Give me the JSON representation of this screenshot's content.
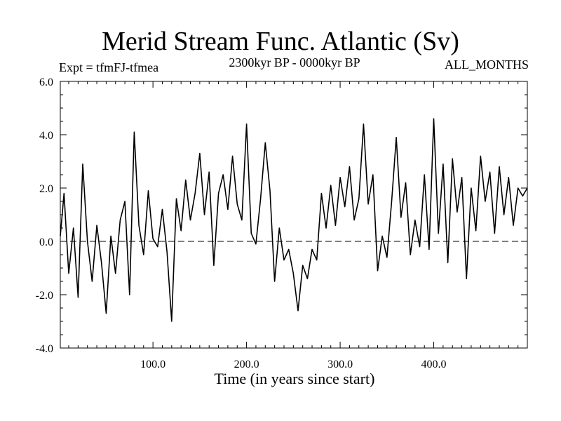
{
  "header": {
    "title": "Merid Stream Func. Atlantic (Sv)",
    "expt": "Expt = tfmFJ-tfmea",
    "period": "2300kyr BP - 0000kyr BP",
    "months": "ALL_MONTHS"
  },
  "colors": {
    "line": "#000000",
    "background": "#ffffff",
    "axis": "#000000"
  },
  "chart_data": {
    "type": "line",
    "title": "Merid Stream Func. Atlantic (Sv)",
    "xlabel": "Time (in years since start)",
    "ylabel": "",
    "xlim": [
      1,
      500
    ],
    "ylim": [
      -4.0,
      6.0
    ],
    "x_ticks": [
      100,
      200,
      300,
      400
    ],
    "x_tick_labels": [
      "100.0",
      "200.0",
      "300.0",
      "400.0"
    ],
    "y_ticks": [
      -4,
      -2,
      0,
      2,
      4,
      6
    ],
    "y_tick_labels": [
      "-4.0",
      "-2.0",
      "0.0",
      "2.0",
      "4.0",
      "6.0"
    ],
    "reference_line": {
      "y": 0.0,
      "style": "dashed"
    },
    "grid": false,
    "series": [
      {
        "name": "tfmFJ-tfmea",
        "x": [
          1,
          5,
          10,
          15,
          20,
          25,
          30,
          35,
          40,
          45,
          50,
          55,
          60,
          65,
          70,
          75,
          80,
          85,
          90,
          95,
          100,
          105,
          110,
          115,
          120,
          125,
          130,
          135,
          140,
          145,
          150,
          155,
          160,
          165,
          170,
          175,
          180,
          185,
          190,
          195,
          200,
          205,
          210,
          215,
          220,
          225,
          230,
          235,
          240,
          245,
          250,
          255,
          260,
          265,
          270,
          275,
          280,
          285,
          290,
          295,
          300,
          305,
          310,
          315,
          320,
          325,
          330,
          335,
          340,
          345,
          350,
          355,
          360,
          365,
          370,
          375,
          380,
          385,
          390,
          395,
          400,
          405,
          410,
          415,
          420,
          425,
          430,
          435,
          440,
          445,
          450,
          455,
          460,
          465,
          470,
          475,
          480,
          485,
          490,
          495,
          500
        ],
        "values": [
          0.2,
          1.8,
          -1.2,
          0.5,
          -2.1,
          2.9,
          0.0,
          -1.5,
          0.6,
          -0.8,
          -2.7,
          0.2,
          -1.2,
          0.8,
          1.5,
          -2.0,
          4.1,
          0.6,
          -0.5,
          1.9,
          0.1,
          -0.2,
          1.2,
          -0.4,
          -3.0,
          1.6,
          0.4,
          2.3,
          0.8,
          1.8,
          3.3,
          1.0,
          2.6,
          -0.9,
          1.8,
          2.5,
          1.2,
          3.2,
          1.4,
          0.8,
          4.4,
          0.3,
          -0.1,
          1.6,
          3.7,
          1.9,
          -1.5,
          0.5,
          -0.7,
          -0.3,
          -1.2,
          -2.6,
          -0.9,
          -1.4,
          -0.3,
          -0.7,
          1.8,
          0.5,
          2.1,
          0.6,
          2.4,
          1.3,
          2.8,
          0.8,
          1.6,
          4.4,
          1.4,
          2.5,
          -1.1,
          0.2,
          -0.6,
          1.5,
          3.9,
          0.9,
          2.2,
          -0.5,
          0.8,
          -0.2,
          2.5,
          -0.3,
          4.6,
          0.3,
          2.9,
          -0.8,
          3.1,
          1.1,
          2.4,
          -1.4,
          2.0,
          0.4,
          3.2,
          1.5,
          2.6,
          0.3,
          2.8,
          1.0,
          2.4,
          0.6,
          2.0,
          1.7,
          2.0
        ]
      }
    ]
  }
}
